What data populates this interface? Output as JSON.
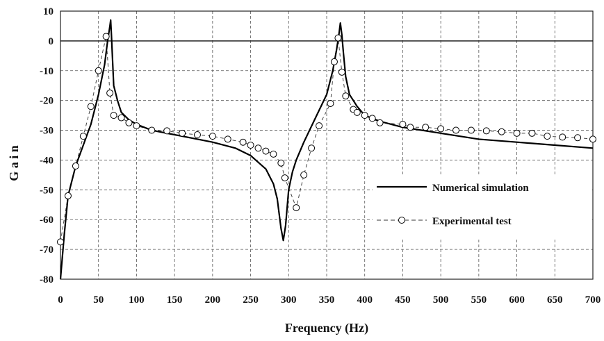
{
  "chart_data": {
    "type": "line",
    "title": "",
    "xlabel": "Frequency (Hz)",
    "ylabel": "G a i n",
    "xlim": [
      0,
      700
    ],
    "ylim": [
      -80,
      10
    ],
    "xticks": [
      0,
      50,
      100,
      150,
      200,
      250,
      300,
      350,
      400,
      450,
      500,
      550,
      600,
      650,
      700
    ],
    "yticks": [
      10,
      0,
      -10,
      -20,
      -30,
      -40,
      -50,
      -60,
      -70,
      -80
    ],
    "grid": true,
    "legend_position": "right",
    "series": [
      {
        "name": "Numerical simulation",
        "style": "solid-line",
        "color": "#000000",
        "x": [
          0,
          5,
          10,
          20,
          30,
          40,
          50,
          58,
          62,
          65,
          66,
          67,
          70,
          75,
          80,
          90,
          100,
          120,
          150,
          200,
          230,
          250,
          270,
          280,
          285,
          290,
          293,
          296,
          300,
          305,
          310,
          320,
          335,
          350,
          358,
          363,
          366,
          368,
          370,
          372,
          375,
          380,
          390,
          400,
          420,
          450,
          500,
          550,
          600,
          650,
          700
        ],
        "y": [
          -80,
          -65,
          -52,
          -42,
          -35,
          -28,
          -18,
          -8,
          0,
          5,
          7,
          2,
          -15,
          -20,
          -24,
          -26.5,
          -28,
          -30,
          -31.5,
          -34,
          -36,
          -38.5,
          -43,
          -48,
          -53,
          -63,
          -67,
          -62,
          -50,
          -44,
          -40,
          -34,
          -26,
          -18,
          -10,
          -3,
          2,
          6,
          2,
          -4,
          -12,
          -18,
          -22,
          -25,
          -27,
          -29,
          -31,
          -33,
          -34,
          -35,
          -36
        ]
      },
      {
        "name": "Experimental test",
        "style": "dashed-line-circles",
        "color": "#000000",
        "x": [
          0,
          10,
          20,
          30,
          40,
          50,
          60,
          65,
          70,
          80,
          90,
          100,
          120,
          140,
          160,
          180,
          200,
          220,
          240,
          250,
          260,
          270,
          280,
          290,
          295,
          310,
          320,
          330,
          340,
          355,
          360,
          365,
          370,
          375,
          385,
          390,
          400,
          410,
          420,
          450,
          460,
          480,
          500,
          520,
          540,
          560,
          580,
          600,
          620,
          640,
          660,
          680,
          700
        ],
        "y": [
          -67.5,
          -52,
          -42,
          -32,
          -22,
          -10,
          1.5,
          -17.5,
          -25,
          -25.8,
          -27.5,
          -28.5,
          -30,
          -30.2,
          -31,
          -31.5,
          -32,
          -33,
          -34,
          -35,
          -36,
          -37,
          -38,
          -41,
          -46,
          -56,
          -45,
          -36,
          -28.5,
          -21,
          -7,
          1,
          -10.5,
          -18.5,
          -23,
          -24,
          -25,
          -26,
          -27.5,
          -28,
          -29,
          -29,
          -29.5,
          -30,
          -30,
          -30.2,
          -30.5,
          -31,
          -31,
          -32,
          -32.3,
          -32.5,
          -33
        ]
      }
    ]
  }
}
